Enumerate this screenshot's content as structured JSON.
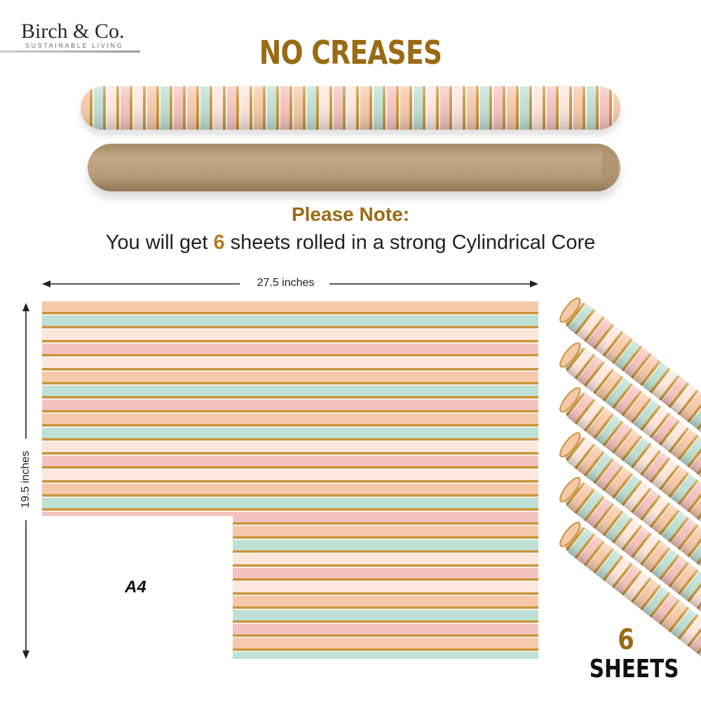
{
  "logo": {
    "name": "Birch & Co.",
    "tagline": "SUSTAINABLE LIVING"
  },
  "heading": "NO CREASES",
  "note": {
    "title": "Please Note:",
    "line_before": "You will get ",
    "count": "6",
    "line_after": " sheets rolled in a strong Cylindrical Core"
  },
  "dimensions": {
    "width_label": "27.5 inches",
    "height_label": "19.5 inches"
  },
  "comparison_label": "A4",
  "sheet_count": {
    "number": "6",
    "label": "SHEETS"
  },
  "colors": {
    "brand_gold": "#9a6a14",
    "stripe_gold": "#c9953a",
    "stripe_mint": "#bfe0d4",
    "stripe_peach": "#f6c9aa",
    "stripe_pink": "#f5c3bf",
    "stripe_cream": "#fde6dc",
    "kraft": "#b99f7d"
  }
}
